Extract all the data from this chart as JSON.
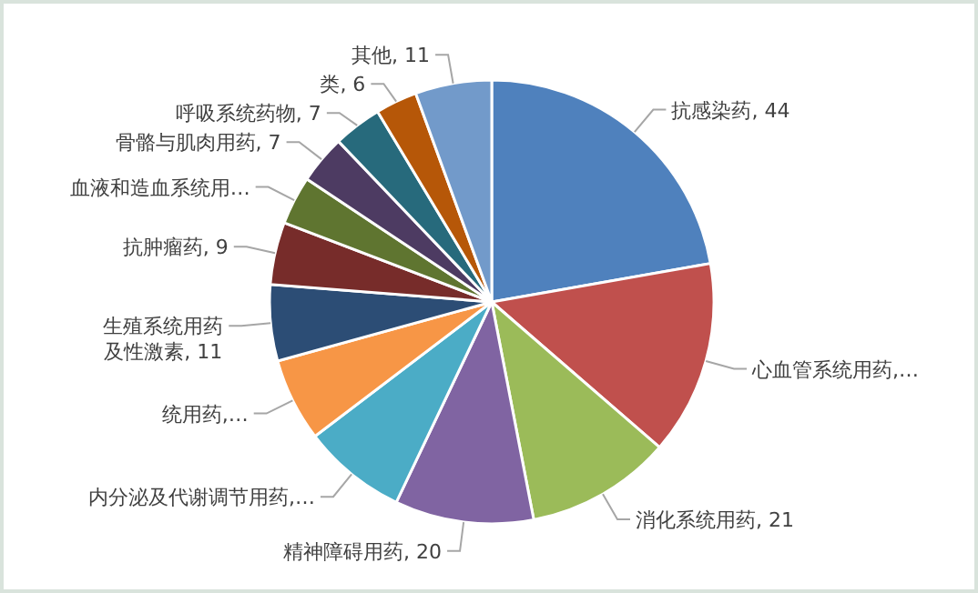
{
  "chart_data": {
    "type": "pie",
    "categories": [
      "抗感染药",
      "心血管系统用药,…",
      "消化系统用药",
      "精神障碍用药",
      "内分泌及代谢调节用药,…",
      "统用药,…",
      "生殖系统用药及性激素",
      "抗肿瘤药",
      "血液和造血系统用…",
      "骨骼与肌肉用药",
      "呼吸系统药物",
      "类",
      "其他"
    ],
    "values": [
      44,
      28,
      21,
      20,
      15,
      12,
      11,
      9,
      7,
      7,
      7,
      6,
      11
    ],
    "value_labels": [
      "44",
      null,
      "21",
      "20",
      null,
      null,
      "11",
      "9",
      null,
      "7",
      "7",
      "6",
      "11"
    ],
    "colors": [
      "#4f81bd",
      "#c0504d",
      "#9bbb59",
      "#8064a2",
      "#4bacc6",
      "#f79646",
      "#2c4d75",
      "#772c2a",
      "#5f7530",
      "#4d3b62",
      "#276a7c",
      "#b65708",
      "#729aca"
    ],
    "legend": false
  }
}
